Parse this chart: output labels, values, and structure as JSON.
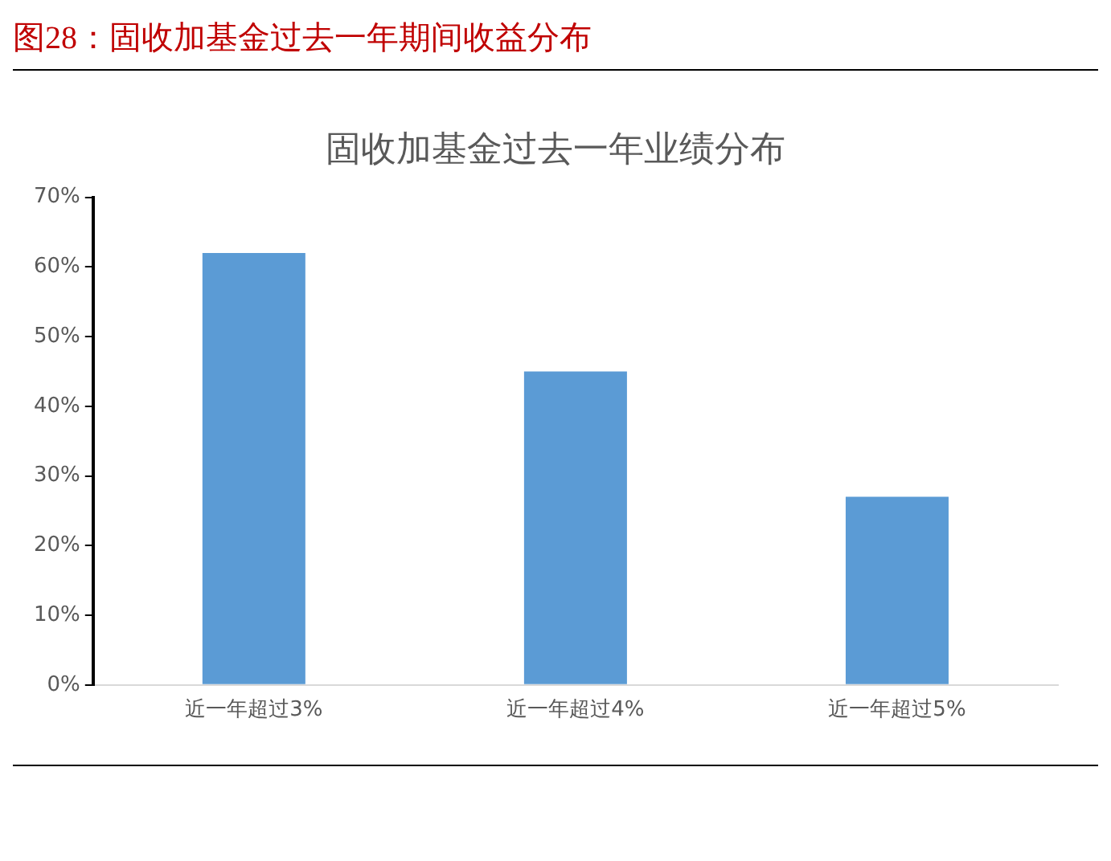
{
  "chart_data": {
    "type": "bar",
    "title": "图28：固收加基金过去一年期间收益分布",
    "subtitle": "固收加基金过去一年业绩分布",
    "categories": [
      "近一年超过3%",
      "近一年超过4%",
      "近一年超过5%"
    ],
    "values": [
      62,
      45,
      27
    ],
    "color": "#5b9bd5",
    "ylim": [
      0,
      70
    ],
    "yticks": [
      {
        "value": 0,
        "label": "0%"
      },
      {
        "value": 10,
        "label": "10%"
      },
      {
        "value": 20,
        "label": "20%"
      },
      {
        "value": 30,
        "label": "30%"
      },
      {
        "value": 40,
        "label": "40%"
      },
      {
        "value": 50,
        "label": "50%"
      },
      {
        "value": 60,
        "label": "60%"
      },
      {
        "value": 70,
        "label": "70%"
      }
    ],
    "grid": false,
    "legend": false
  }
}
